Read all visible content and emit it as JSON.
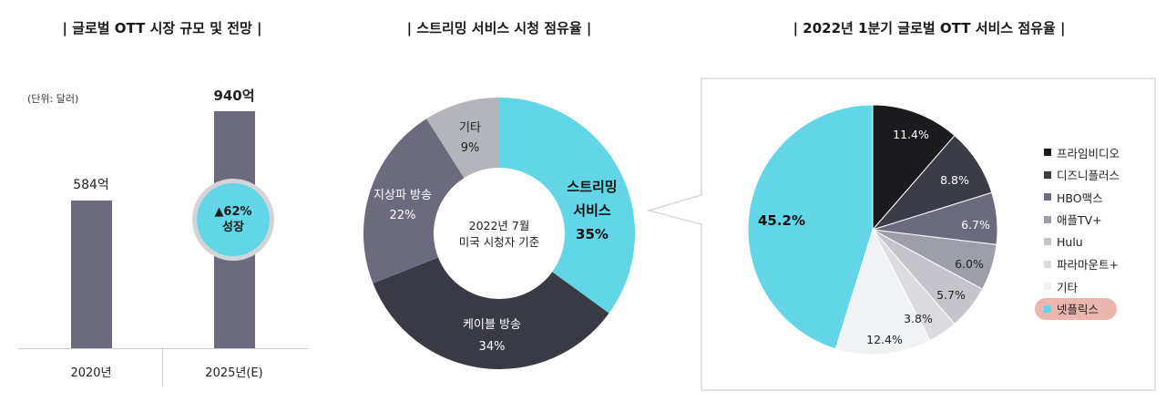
{
  "titles": {
    "market": "| 글로벌 OTT 시장 규모 및 전망 |",
    "viewing": "| 스트리밍 서비스 시청 점유율 |",
    "share2022": "| 2022년 1분기 글로벌 OTT 서비스 점유율 |"
  },
  "colors": {
    "bar": "#6b6b7d",
    "cyan": "#62d6e6",
    "growth_border": "#d4d4d8",
    "highlight": "#e8a99f"
  },
  "chart_data": [
    {
      "type": "bar",
      "title": "| 글로벌 OTT 시장 규모 및 전망 |",
      "unit_note": "(단위: 달러)",
      "categories": [
        "2020년",
        "2025년(E)"
      ],
      "values": [
        584,
        940
      ],
      "value_labels": [
        "584억",
        "940억"
      ],
      "annotation": {
        "line1": "▲62%",
        "line2": "성장"
      },
      "ylim": [
        0,
        1000
      ]
    },
    {
      "type": "pie",
      "style": "donut",
      "title": "| 스트리밍 서비스 시청 점유율 |",
      "center_text": [
        "2022년 7월",
        "미국 시청자 기준"
      ],
      "slices": [
        {
          "label": "스트리밍 서비스",
          "label_lines": [
            "스트리밍",
            "서비스"
          ],
          "value": 35,
          "value_label": "35%",
          "color": "#62d6e6"
        },
        {
          "label": "케이블 방송",
          "label_lines": [
            "케이블 방송"
          ],
          "value": 34,
          "value_label": "34%",
          "color": "#3a3a45"
        },
        {
          "label": "지상파 방송",
          "label_lines": [
            "지상파 방송"
          ],
          "value": 22,
          "value_label": "22%",
          "color": "#6b6b7d"
        },
        {
          "label": "기타",
          "label_lines": [
            "기타"
          ],
          "value": 9,
          "value_label": "9%",
          "color": "#b4b4bb"
        }
      ]
    },
    {
      "type": "pie",
      "title": "| 2022년 1분기 글로벌 OTT 서비스 점유율 |",
      "slices": [
        {
          "label": "프라임비디오",
          "value": 11.4,
          "value_label": "11.4%",
          "color": "#1b1b1d"
        },
        {
          "label": "디즈니플러스",
          "value": 8.8,
          "value_label": "8.8%",
          "color": "#3c3c46"
        },
        {
          "label": "HBO맥스",
          "value": 6.7,
          "value_label": "6.7%",
          "color": "#6b6b7d"
        },
        {
          "label": "애플TV+",
          "value": 6.0,
          "value_label": "6.0%",
          "color": "#9e9ea8"
        },
        {
          "label": "Hulu",
          "value": 5.7,
          "value_label": "5.7%",
          "color": "#c4c4ca"
        },
        {
          "label": "파라마운트+",
          "value": 3.8,
          "value_label": "3.8%",
          "color": "#dcdce0"
        },
        {
          "label": "기타",
          "value": 12.4,
          "value_label": "12.4%",
          "color": "#f1f2f4"
        },
        {
          "label": "넷플릭스",
          "value": 45.2,
          "value_label": "45.2%",
          "color": "#62d6e6"
        }
      ],
      "legend_position": "right",
      "highlighted_legend": "넷플릭스"
    }
  ]
}
